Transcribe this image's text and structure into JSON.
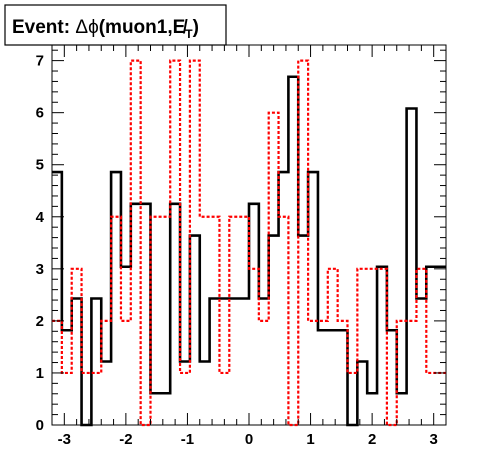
{
  "chart_data": {
    "type": "step",
    "title": {
      "prefix": "Event: ",
      "delta": "Δ",
      "phi": "ϕ",
      "open": "(",
      "muon": "muon1,",
      "met": "E̸",
      "met_sub": "T",
      "close": ")"
    },
    "xlabel": "",
    "ylabel": "",
    "xlim": [
      -3.2,
      3.2
    ],
    "ylim": [
      0,
      7.3
    ],
    "xticks": [
      -3,
      -2,
      -1,
      0,
      1,
      2,
      3
    ],
    "yticks": [
      0,
      1,
      2,
      3,
      4,
      5,
      6,
      7
    ],
    "bins": 40,
    "grid": false,
    "series": [
      {
        "color": "#000000",
        "line_style": "solid",
        "values": [
          4.86,
          1.82,
          2.43,
          0,
          2.43,
          1.22,
          4.86,
          3.04,
          4.25,
          4.25,
          0.61,
          0.61,
          4.25,
          1.22,
          3.64,
          1.22,
          2.43,
          2.43,
          2.43,
          2.43,
          4.25,
          2.43,
          3.64,
          4.86,
          6.69,
          3.64,
          4.86,
          1.82,
          1.82,
          1.82,
          0,
          1.22,
          0.61,
          3.04,
          1.82,
          0.61,
          6.08,
          2.43,
          3.04,
          3.04
        ]
      },
      {
        "color": "#ff0000",
        "line_style": "dotted",
        "values": [
          2,
          1,
          3,
          1,
          1,
          2,
          4,
          2,
          7,
          0,
          4,
          4,
          7,
          1,
          7,
          4,
          4,
          1,
          4,
          4,
          3,
          2,
          6,
          4,
          0,
          7,
          2,
          2,
          3,
          2,
          1,
          3,
          3,
          3,
          0,
          2,
          2,
          3,
          1,
          1
        ]
      }
    ]
  }
}
